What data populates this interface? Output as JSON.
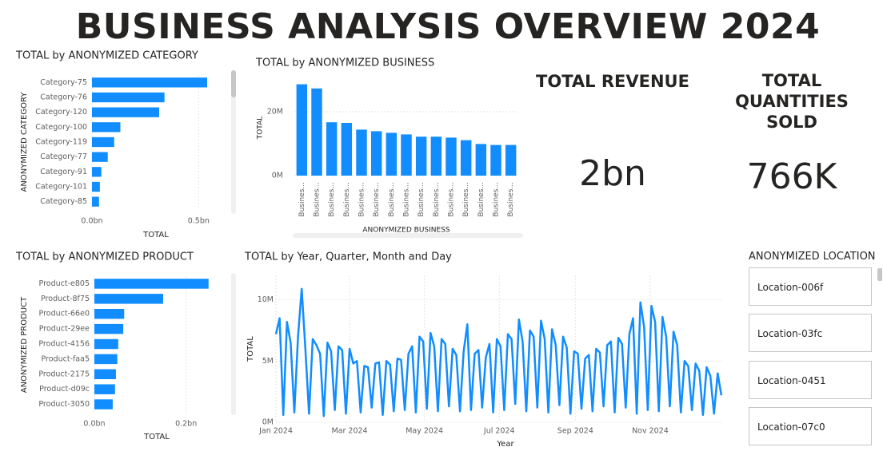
{
  "title": "BUSINESS ANALYSIS OVERVIEW 2024",
  "kpis": [
    {
      "label": "TOTAL REVENUE",
      "value": "2bn"
    },
    {
      "label": "TOTAL QUANTITIES SOLD",
      "value": "766K"
    }
  ],
  "slicer": {
    "title": "ANONYMIZED LOCATION",
    "items": [
      "Location-006f",
      "Location-03fc",
      "Location-0451",
      "Location-07c0"
    ]
  },
  "chart_data": [
    {
      "type": "bar",
      "horizontal": true,
      "title": "TOTAL by ANONYMIZED CATEGORY",
      "x_label": "TOTAL",
      "y_label": "ANONYMIZED CATEGORY",
      "categories": [
        "Category-75",
        "Category-76",
        "Category-120",
        "Category-100",
        "Category-119",
        "Category-77",
        "Category-91",
        "Category-101",
        "Category-85"
      ],
      "values": [
        0.54,
        0.34,
        0.315,
        0.133,
        0.104,
        0.074,
        0.044,
        0.037,
        0.033
      ],
      "color": "#118dff",
      "xlim": [
        0,
        0.6
      ],
      "xticks": [
        {
          "value": 0,
          "label": "0.0bn"
        },
        {
          "value": 0.5,
          "label": "0.5bn"
        }
      ],
      "grid": true
    },
    {
      "type": "bar",
      "horizontal": false,
      "title": "TOTAL by ANONYMIZED BUSINESS",
      "x_label": "ANONYMIZED BUSINESS",
      "y_label": "TOTAL",
      "categories": [
        "Busines...",
        "Busines...",
        "Busines...",
        "Busines...",
        "Busines...",
        "Busines...",
        "Busines...",
        "Busines...",
        "Busines...",
        "Busines...",
        "Busines...",
        "Busines...",
        "Busines...",
        "Busines...",
        "Busines..."
      ],
      "values": [
        28.6,
        27.3,
        16.7,
        16.5,
        14.4,
        13.9,
        13.4,
        12.9,
        12.2,
        12.2,
        11.9,
        11.1,
        9.9,
        9.6,
        9.6
      ],
      "color": "#118dff",
      "ylim": [
        0,
        30
      ],
      "yticks": [
        {
          "value": 0,
          "label": "0M"
        },
        {
          "value": 20,
          "label": "20M"
        }
      ],
      "grid": true
    },
    {
      "type": "bar",
      "horizontal": true,
      "title": "TOTAL by ANONYMIZED PRODUCT",
      "x_label": "TOTAL",
      "y_label": "ANONYMIZED PRODUCT",
      "categories": [
        "Product-e805",
        "Product-8f75",
        "Product-66e0",
        "Product-29ee",
        "Product-4156",
        "Product-faa5",
        "Product-2175",
        "Product-d09c",
        "Product-3050"
      ],
      "values": [
        0.249,
        0.15,
        0.065,
        0.063,
        0.052,
        0.05,
        0.047,
        0.045,
        0.04
      ],
      "color": "#118dff",
      "xlim": [
        0,
        0.3
      ],
      "xticks": [
        {
          "value": 0,
          "label": "0.0bn"
        },
        {
          "value": 0.2,
          "label": "0.2bn"
        }
      ],
      "grid": true
    },
    {
      "type": "line",
      "title": "TOTAL by Year, Quarter, Month and Day",
      "x_label": "Year",
      "y_label": "TOTAL",
      "color": "#118dff",
      "x": [
        1,
        4,
        7,
        10,
        13,
        16,
        19,
        22,
        25,
        28,
        31,
        34,
        37,
        40,
        43,
        46,
        49,
        52,
        55,
        58,
        61,
        64,
        67,
        70,
        73,
        76,
        79,
        82,
        85,
        88,
        91,
        94,
        97,
        100,
        103,
        106,
        109,
        112,
        115,
        118,
        121,
        124,
        127,
        130,
        133,
        136,
        139,
        142,
        145,
        148,
        151,
        154,
        157,
        160,
        163,
        166,
        169,
        172,
        175,
        178,
        181,
        184,
        187,
        190,
        193,
        196,
        199,
        202,
        205,
        208,
        211,
        214,
        217,
        220,
        223,
        226,
        229,
        232,
        235,
        238,
        241,
        244,
        247,
        250,
        253,
        256,
        259,
        262,
        265,
        268,
        271,
        274,
        277,
        280,
        283,
        286,
        289,
        292,
        295,
        298,
        301,
        304,
        307,
        310,
        313,
        316,
        319,
        322,
        325,
        328,
        331,
        334,
        337,
        340,
        343,
        346,
        349,
        352,
        355,
        358,
        361,
        364
      ],
      "values": [
        7.2,
        8.5,
        0.6,
        8.2,
        6.5,
        0.8,
        7.0,
        10.9,
        6.0,
        0.7,
        6.8,
        6.3,
        5.6,
        0.5,
        6.5,
        5.8,
        1.0,
        6.2,
        5.9,
        0.7,
        6.0,
        4.8,
        5.0,
        0.8,
        4.6,
        4.5,
        1.2,
        4.8,
        4.9,
        0.6,
        5.0,
        4.7,
        0.9,
        5.2,
        5.1,
        1.0,
        5.6,
        6.2,
        0.8,
        7.0,
        6.6,
        1.1,
        7.3,
        6.2,
        0.9,
        6.8,
        6.4,
        1.3,
        6.0,
        5.5,
        0.9,
        5.8,
        8.0,
        1.0,
        5.6,
        5.9,
        1.2,
        5.3,
        6.4,
        0.8,
        6.8,
        6.2,
        1.0,
        7.2,
        6.8,
        1.5,
        8.4,
        6.6,
        0.9,
        7.5,
        7.0,
        1.2,
        8.3,
        6.8,
        0.8,
        7.6,
        6.3,
        1.4,
        7.0,
        6.1,
        0.7,
        5.8,
        5.6,
        1.1,
        5.2,
        5.5,
        0.9,
        6.0,
        5.7,
        1.3,
        6.3,
        6.6,
        0.8,
        6.9,
        6.4,
        1.2,
        7.2,
        8.5,
        0.7,
        9.8,
        7.8,
        1.0,
        9.5,
        8.2,
        0.9,
        8.6,
        7.0,
        1.3,
        7.4,
        6.3,
        0.8,
        5.0,
        4.6,
        1.0,
        4.8,
        4.2,
        0.6,
        4.5,
        3.8,
        0.7,
        4.0,
        2.2
      ],
      "xlim": [
        1,
        366
      ],
      "xticks": [
        {
          "value": 1,
          "label": "Jan 2024"
        },
        {
          "value": 61,
          "label": "Mar 2024"
        },
        {
          "value": 122,
          "label": "May 2024"
        },
        {
          "value": 183,
          "label": "Jul 2024"
        },
        {
          "value": 245,
          "label": "Sep 2024"
        },
        {
          "value": 306,
          "label": "Nov 2024"
        }
      ],
      "ylim": [
        0,
        12
      ],
      "yticks": [
        {
          "value": 0,
          "label": "0M"
        },
        {
          "value": 5,
          "label": "5M"
        },
        {
          "value": 10,
          "label": "10M"
        }
      ],
      "grid": true
    }
  ]
}
